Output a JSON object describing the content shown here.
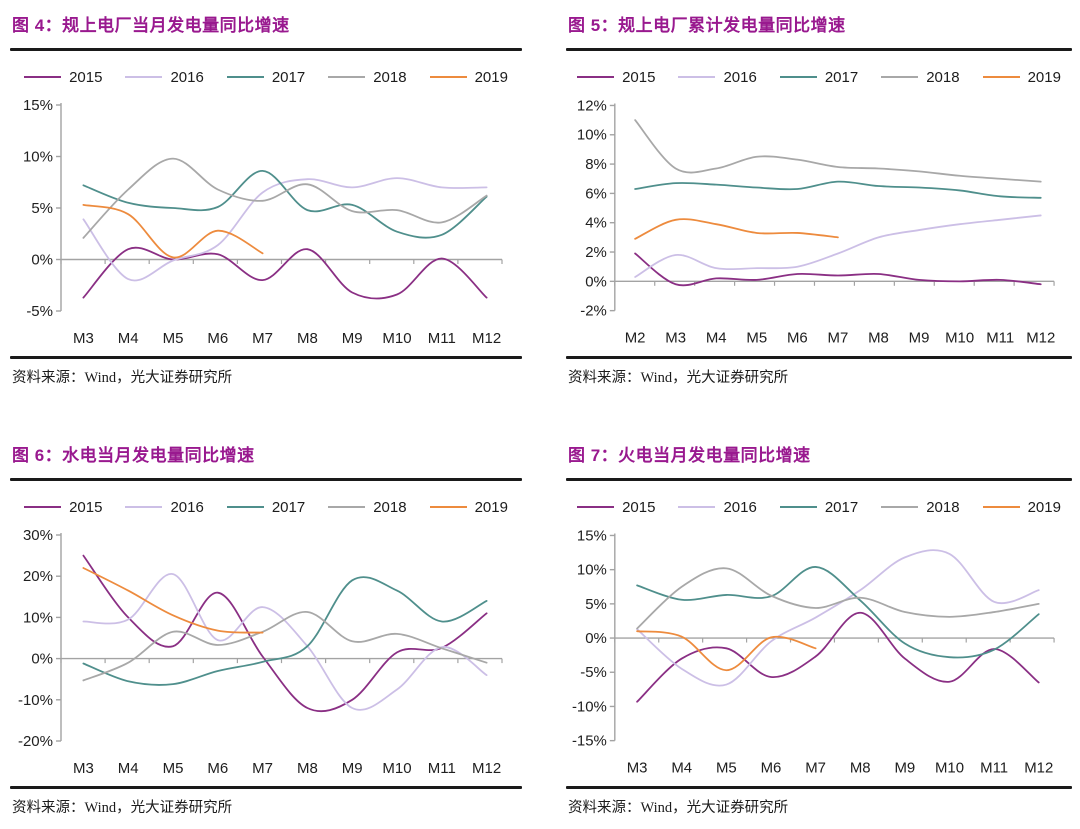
{
  "palette": {
    "title_color": "#99198f",
    "rule_color": "#1a1a1a",
    "axis_color": "#a3a3a3",
    "text_color": "#202020",
    "series": {
      "2015": "#8a2f84",
      "2016": "#ccbfe6",
      "2017": "#4f8f8c",
      "2018": "#a8a8a8",
      "2019": "#ed8b3e"
    }
  },
  "chart_data": [
    {
      "type": "line",
      "title": "图 4：规上电厂当月发电量同比增速",
      "source": "资料来源：Wind，光大证券研究所",
      "categories": [
        "M3",
        "M4",
        "M5",
        "M6",
        "M7",
        "M8",
        "M9",
        "M10",
        "M11",
        "M12"
      ],
      "ylim": [
        -5,
        15
      ],
      "yticks": [
        15,
        10,
        5,
        0,
        -5
      ],
      "ytick_labels": [
        "15%",
        "10%",
        "5%",
        "0%",
        "-5%"
      ],
      "grid": false,
      "legend_position": "top",
      "series": [
        {
          "name": "2015",
          "color": "#8a2f84",
          "values": [
            -3.7,
            1.0,
            0.0,
            0.5,
            -2.0,
            1.0,
            -3.2,
            -3.4,
            0.1,
            -3.7
          ]
        },
        {
          "name": "2016",
          "color": "#ccbfe6",
          "values": [
            3.9,
            -1.9,
            -0.1,
            1.4,
            6.5,
            7.8,
            7.0,
            7.9,
            7.0,
            7.0
          ]
        },
        {
          "name": "2017",
          "color": "#4f8f8c",
          "values": [
            7.2,
            5.5,
            5.0,
            5.1,
            8.6,
            4.8,
            5.3,
            2.7,
            2.4,
            6.1
          ]
        },
        {
          "name": "2018",
          "color": "#a8a8a8",
          "values": [
            2.1,
            6.8,
            9.8,
            6.8,
            5.7,
            7.3,
            4.7,
            4.8,
            3.6,
            6.2
          ]
        },
        {
          "name": "2019",
          "color": "#ed8b3e",
          "values": [
            5.3,
            4.4,
            0.2,
            2.8,
            0.6,
            null,
            null,
            null,
            null,
            null
          ]
        }
      ]
    },
    {
      "type": "line",
      "title": "图 5：规上电厂累计发电量同比增速",
      "source": "资料来源：Wind，光大证券研究所",
      "categories": [
        "M2",
        "M3",
        "M4",
        "M5",
        "M6",
        "M7",
        "M8",
        "M9",
        "M10",
        "M11",
        "M12"
      ],
      "ylim": [
        -2,
        12
      ],
      "yticks": [
        12,
        10,
        8,
        6,
        4,
        2,
        0,
        -2
      ],
      "ytick_labels": [
        "12%",
        "10%",
        "8%",
        "6%",
        "4%",
        "2%",
        "0%",
        "-2%"
      ],
      "grid": false,
      "legend_position": "top",
      "series": [
        {
          "name": "2015",
          "color": "#8a2f84",
          "values": [
            1.9,
            -0.2,
            0.2,
            0.1,
            0.5,
            0.4,
            0.5,
            0.1,
            0.0,
            0.1,
            -0.2
          ]
        },
        {
          "name": "2016",
          "color": "#ccbfe6",
          "values": [
            0.3,
            1.8,
            0.9,
            0.9,
            1.0,
            1.9,
            3.0,
            3.5,
            3.9,
            4.2,
            4.5
          ]
        },
        {
          "name": "2017",
          "color": "#4f8f8c",
          "values": [
            6.3,
            6.7,
            6.6,
            6.4,
            6.3,
            6.8,
            6.5,
            6.4,
            6.2,
            5.8,
            5.7
          ]
        },
        {
          "name": "2018",
          "color": "#a8a8a8",
          "values": [
            11.0,
            7.7,
            7.7,
            8.5,
            8.3,
            7.8,
            7.7,
            7.5,
            7.2,
            7.0,
            6.8
          ]
        },
        {
          "name": "2019",
          "color": "#ed8b3e",
          "values": [
            2.9,
            4.2,
            3.9,
            3.3,
            3.3,
            3.0,
            null,
            null,
            null,
            null,
            null
          ]
        }
      ]
    },
    {
      "type": "line",
      "title": "图 6：水电当月发电量同比增速",
      "source": "资料来源：Wind，光大证券研究所",
      "categories": [
        "M3",
        "M4",
        "M5",
        "M6",
        "M7",
        "M8",
        "M9",
        "M10",
        "M11",
        "M12"
      ],
      "ylim": [
        -20,
        30
      ],
      "yticks": [
        30,
        20,
        10,
        0,
        -10,
        -20
      ],
      "ytick_labels": [
        "30%",
        "20%",
        "10%",
        "0%",
        "-10%",
        "-20%"
      ],
      "grid": false,
      "legend_position": "top",
      "series": [
        {
          "name": "2015",
          "color": "#8a2f84",
          "values": [
            25,
            10,
            3,
            16,
            0.5,
            -12,
            -10,
            1.5,
            2.6,
            11
          ]
        },
        {
          "name": "2016",
          "color": "#ccbfe6",
          "values": [
            9,
            9.5,
            20.5,
            4.5,
            12.5,
            3,
            -12,
            -7.5,
            2.8,
            -4
          ]
        },
        {
          "name": "2017",
          "color": "#4f8f8c",
          "values": [
            -1.2,
            -5.5,
            -6.2,
            -3,
            -0.8,
            3,
            19,
            16.5,
            9,
            14
          ]
        },
        {
          "name": "2018",
          "color": "#a8a8a8",
          "values": [
            -5.3,
            -1,
            6.5,
            3.3,
            6.5,
            11.3,
            4.2,
            6,
            2.5,
            -1
          ]
        },
        {
          "name": "2019",
          "color": "#ed8b3e",
          "values": [
            22,
            16.5,
            10.5,
            6.8,
            6.3,
            null,
            null,
            null,
            null,
            null
          ]
        }
      ]
    },
    {
      "type": "line",
      "title": "图 7：火电当月发电量同比增速",
      "source": "资料来源：Wind，光大证券研究所",
      "categories": [
        "M3",
        "M4",
        "M5",
        "M6",
        "M7",
        "M8",
        "M9",
        "M10",
        "M11",
        "M12"
      ],
      "ylim": [
        -15,
        15
      ],
      "yticks": [
        15,
        10,
        5,
        0,
        -5,
        -10,
        -15
      ],
      "ytick_labels": [
        "15%",
        "10%",
        "5%",
        "0%",
        "-5%",
        "-10%",
        "-15%"
      ],
      "grid": false,
      "legend_position": "top",
      "series": [
        {
          "name": "2015",
          "color": "#8a2f84",
          "values": [
            -9.3,
            -3,
            -1.5,
            -5.7,
            -2.7,
            3.7,
            -3,
            -6.4,
            -1.6,
            -6.5
          ]
        },
        {
          "name": "2016",
          "color": "#ccbfe6",
          "values": [
            1.3,
            -4.5,
            -6.8,
            -0.5,
            3,
            7,
            11.8,
            12.3,
            5.3,
            7
          ]
        },
        {
          "name": "2017",
          "color": "#4f8f8c",
          "values": [
            7.7,
            5.6,
            6.3,
            6.1,
            10.4,
            5.5,
            -0.8,
            -2.8,
            -1.7,
            3.5
          ]
        },
        {
          "name": "2018",
          "color": "#a8a8a8",
          "values": [
            1.4,
            7.5,
            10.2,
            6.2,
            4.4,
            5.9,
            3.8,
            3.1,
            3.8,
            5.0
          ]
        },
        {
          "name": "2019",
          "color": "#ed8b3e",
          "values": [
            1.0,
            0.2,
            -4.7,
            0.1,
            -1.5,
            null,
            null,
            null,
            null,
            null
          ]
        }
      ]
    }
  ]
}
